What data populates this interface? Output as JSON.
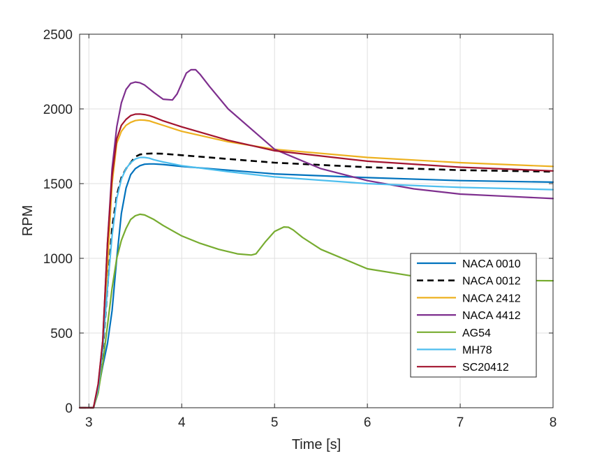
{
  "chart_data": {
    "type": "line",
    "title": "",
    "xlabel": "Time [s]",
    "ylabel": "RPM",
    "xlim": [
      2.9,
      8
    ],
    "ylim": [
      0,
      2500
    ],
    "xticks": [
      3,
      4,
      5,
      6,
      7,
      8
    ],
    "yticks": [
      0,
      500,
      1000,
      1500,
      2000,
      2500
    ],
    "xtick_labels": [
      "3",
      "4",
      "5",
      "6",
      "7",
      "8"
    ],
    "ytick_labels": [
      "0",
      "500",
      "1000",
      "1500",
      "2000",
      "2500"
    ],
    "grid": true,
    "legend_position": "bottom-right",
    "series": [
      {
        "name": "NACA 0010",
        "color": "#0072BD",
        "dash": "solid",
        "x": [
          2.9,
          3.05,
          3.1,
          3.15,
          3.2,
          3.25,
          3.3,
          3.35,
          3.4,
          3.45,
          3.5,
          3.55,
          3.6,
          3.65,
          3.7,
          3.8,
          4.0,
          4.5,
          5.0,
          6.0,
          7.0,
          8.0
        ],
        "y": [
          0,
          0,
          120,
          280,
          430,
          650,
          1000,
          1300,
          1470,
          1560,
          1600,
          1620,
          1630,
          1632,
          1632,
          1628,
          1615,
          1590,
          1565,
          1540,
          1520,
          1510
        ]
      },
      {
        "name": "NACA 0012",
        "color": "#000000",
        "dash": "dashed",
        "x": [
          2.9,
          3.05,
          3.1,
          3.15,
          3.2,
          3.25,
          3.3,
          3.35,
          3.4,
          3.45,
          3.5,
          3.55,
          3.6,
          3.7,
          3.8,
          4.0,
          4.5,
          5.0,
          6.0,
          7.0,
          8.0
        ],
        "y": [
          0,
          0,
          140,
          380,
          800,
          1200,
          1420,
          1540,
          1600,
          1640,
          1680,
          1695,
          1700,
          1702,
          1700,
          1690,
          1665,
          1640,
          1610,
          1590,
          1580
        ]
      },
      {
        "name": "NACA 2412",
        "color": "#EDB120",
        "dash": "solid",
        "x": [
          2.9,
          3.05,
          3.1,
          3.15,
          3.2,
          3.25,
          3.3,
          3.35,
          3.4,
          3.45,
          3.5,
          3.55,
          3.6,
          3.65,
          3.7,
          3.8,
          4.0,
          4.5,
          5.0,
          6.0,
          7.0,
          8.0
        ],
        "y": [
          0,
          0,
          150,
          400,
          950,
          1500,
          1770,
          1850,
          1890,
          1910,
          1922,
          1926,
          1925,
          1920,
          1910,
          1890,
          1850,
          1780,
          1730,
          1675,
          1640,
          1615
        ]
      },
      {
        "name": "NACA 4412",
        "color": "#7E2F8E",
        "dash": "solid",
        "x": [
          2.9,
          3.05,
          3.1,
          3.15,
          3.2,
          3.25,
          3.3,
          3.35,
          3.4,
          3.45,
          3.5,
          3.55,
          3.6,
          3.7,
          3.8,
          3.9,
          3.95,
          4.0,
          4.05,
          4.1,
          4.15,
          4.2,
          4.3,
          4.5,
          5.0,
          5.5,
          6.0,
          6.5,
          7.0,
          7.5,
          8.0
        ],
        "y": [
          0,
          0,
          150,
          450,
          1100,
          1600,
          1880,
          2040,
          2130,
          2170,
          2180,
          2175,
          2160,
          2110,
          2065,
          2060,
          2100,
          2170,
          2240,
          2262,
          2262,
          2230,
          2150,
          2000,
          1730,
          1600,
          1520,
          1465,
          1430,
          1415,
          1400
        ]
      },
      {
        "name": "AG54",
        "color": "#77AC30",
        "dash": "solid",
        "x": [
          2.9,
          3.05,
          3.1,
          3.15,
          3.2,
          3.25,
          3.3,
          3.35,
          3.4,
          3.45,
          3.5,
          3.55,
          3.6,
          3.7,
          3.8,
          4.0,
          4.2,
          4.4,
          4.6,
          4.75,
          4.8,
          4.9,
          5.0,
          5.1,
          5.15,
          5.2,
          5.3,
          5.5,
          6.0,
          6.5,
          7.0,
          7.5,
          8.0
        ],
        "y": [
          0,
          0,
          100,
          300,
          550,
          800,
          1000,
          1120,
          1200,
          1260,
          1285,
          1295,
          1290,
          1260,
          1220,
          1150,
          1100,
          1060,
          1030,
          1022,
          1030,
          1110,
          1180,
          1210,
          1208,
          1190,
          1140,
          1060,
          930,
          880,
          860,
          852,
          850
        ]
      },
      {
        "name": "MH78",
        "color": "#4DBEEE",
        "dash": "solid",
        "x": [
          2.9,
          3.05,
          3.1,
          3.15,
          3.2,
          3.25,
          3.3,
          3.35,
          3.4,
          3.45,
          3.5,
          3.55,
          3.6,
          3.65,
          3.7,
          3.8,
          4.0,
          4.5,
          5.0,
          6.0,
          7.0,
          8.0
        ],
        "y": [
          0,
          0,
          130,
          400,
          800,
          1150,
          1400,
          1530,
          1600,
          1640,
          1665,
          1675,
          1675,
          1670,
          1660,
          1645,
          1620,
          1580,
          1545,
          1500,
          1475,
          1460
        ]
      },
      {
        "name": "SC20412",
        "color": "#A2142F",
        "dash": "solid",
        "x": [
          2.9,
          3.05,
          3.1,
          3.15,
          3.2,
          3.25,
          3.3,
          3.35,
          3.4,
          3.45,
          3.5,
          3.55,
          3.6,
          3.65,
          3.7,
          3.8,
          4.0,
          4.5,
          5.0,
          6.0,
          7.0,
          8.0
        ],
        "y": [
          0,
          0,
          160,
          450,
          1100,
          1550,
          1800,
          1890,
          1930,
          1955,
          1965,
          1966,
          1962,
          1955,
          1945,
          1920,
          1880,
          1790,
          1720,
          1650,
          1610,
          1585
        ]
      }
    ]
  }
}
